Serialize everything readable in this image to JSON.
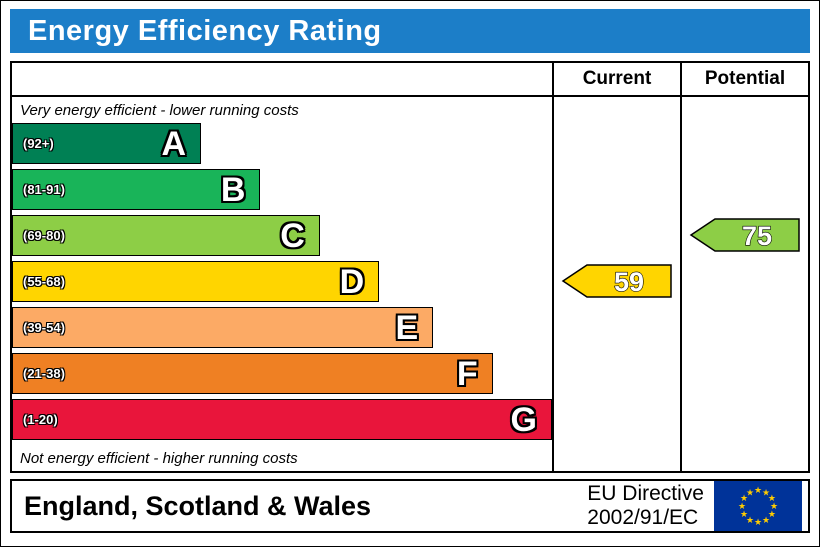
{
  "title": "Energy Efficiency Rating",
  "columns": {
    "current": "Current",
    "potential": "Potential"
  },
  "top_note": "Very energy efficient - lower running costs",
  "bottom_note": "Not energy efficient - higher running costs",
  "footer": {
    "region": "England, Scotland & Wales",
    "directive_line1": "EU Directive",
    "directive_line2": "2002/91/EC",
    "flag_icon": "eu-flag"
  },
  "colors": {
    "header_blue": "#1c7ec8",
    "band_a": "#008054",
    "band_b": "#19b459",
    "band_c": "#8dce46",
    "band_d": "#ffd500",
    "band_e": "#fcaa65",
    "band_f": "#ef8023",
    "band_g": "#e9153b"
  },
  "chart_data": {
    "type": "bar",
    "title": "Energy Efficiency Rating",
    "bands": [
      {
        "letter": "A",
        "range": "(92+)",
        "color": "#008054",
        "width_pct": 35
      },
      {
        "letter": "B",
        "range": "(81-91)",
        "color": "#19b459",
        "width_pct": 46
      },
      {
        "letter": "C",
        "range": "(69-80)",
        "color": "#8dce46",
        "width_pct": 57
      },
      {
        "letter": "D",
        "range": "(55-68)",
        "color": "#ffd500",
        "width_pct": 68
      },
      {
        "letter": "E",
        "range": "(39-54)",
        "color": "#fcaa65",
        "width_pct": 78
      },
      {
        "letter": "F",
        "range": "(21-38)",
        "color": "#ef8023",
        "width_pct": 89
      },
      {
        "letter": "G",
        "range": "(1-20)",
        "color": "#e9153b",
        "width_pct": 100
      }
    ],
    "current": {
      "value": 59,
      "band": "D",
      "color": "#ffd500"
    },
    "potential": {
      "value": 75,
      "band": "C",
      "color": "#8dce46"
    }
  }
}
